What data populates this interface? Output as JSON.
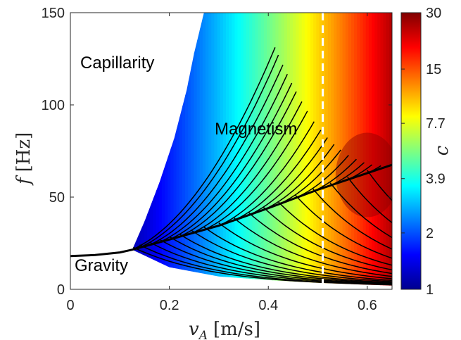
{
  "chart_data": {
    "type": "heatmap",
    "xlabel_main": "v",
    "xlabel_sub": "A",
    "xlabel_unit": "[m/s]",
    "ylabel_main": "f",
    "ylabel_unit": "[Hz]",
    "xlim": [
      0,
      0.65
    ],
    "ylim": [
      0,
      150
    ],
    "x_ticks": [
      0,
      0.2,
      0.4,
      0.6
    ],
    "x_tick_labels": [
      "0",
      "0.2",
      "0.4",
      "0.6"
    ],
    "y_ticks": [
      0,
      50,
      100,
      150
    ],
    "y_tick_labels": [
      "0",
      "50",
      "100",
      "150"
    ],
    "colorbar": {
      "label": "c",
      "scale": "log",
      "range": [
        1,
        30
      ],
      "ticks": [
        1,
        2,
        3.9,
        7.7,
        15,
        30
      ],
      "tick_labels": [
        "1",
        "2",
        "3.9",
        "7.7",
        "15",
        "30"
      ],
      "colormap": "jet"
    },
    "region_labels": [
      "Capillarity",
      "Magnetism",
      "Gravity"
    ],
    "boundary_curve": {
      "x": [
        0,
        0.05,
        0.1,
        0.125,
        0.2,
        0.3,
        0.4,
        0.5,
        0.6,
        0.65
      ],
      "y": [
        18,
        18.6,
        20,
        21.5,
        27,
        34.5,
        44,
        54,
        63,
        67.5
      ]
    },
    "reference_line": {
      "x": 0.51,
      "style": "dashed",
      "color": "#ffffff"
    },
    "domain_left_edge": {
      "x": [
        0.125,
        0.15,
        0.18,
        0.21,
        0.235,
        0.25,
        0.27
      ],
      "y": [
        21.5,
        37,
        58,
        82,
        108,
        128,
        150
      ]
    },
    "domain_lower_edge": {
      "x": [
        0.125,
        0.2,
        0.3,
        0.4,
        0.5,
        0.65
      ],
      "y": [
        21.5,
        12,
        7,
        5,
        3.5,
        2
      ]
    }
  }
}
